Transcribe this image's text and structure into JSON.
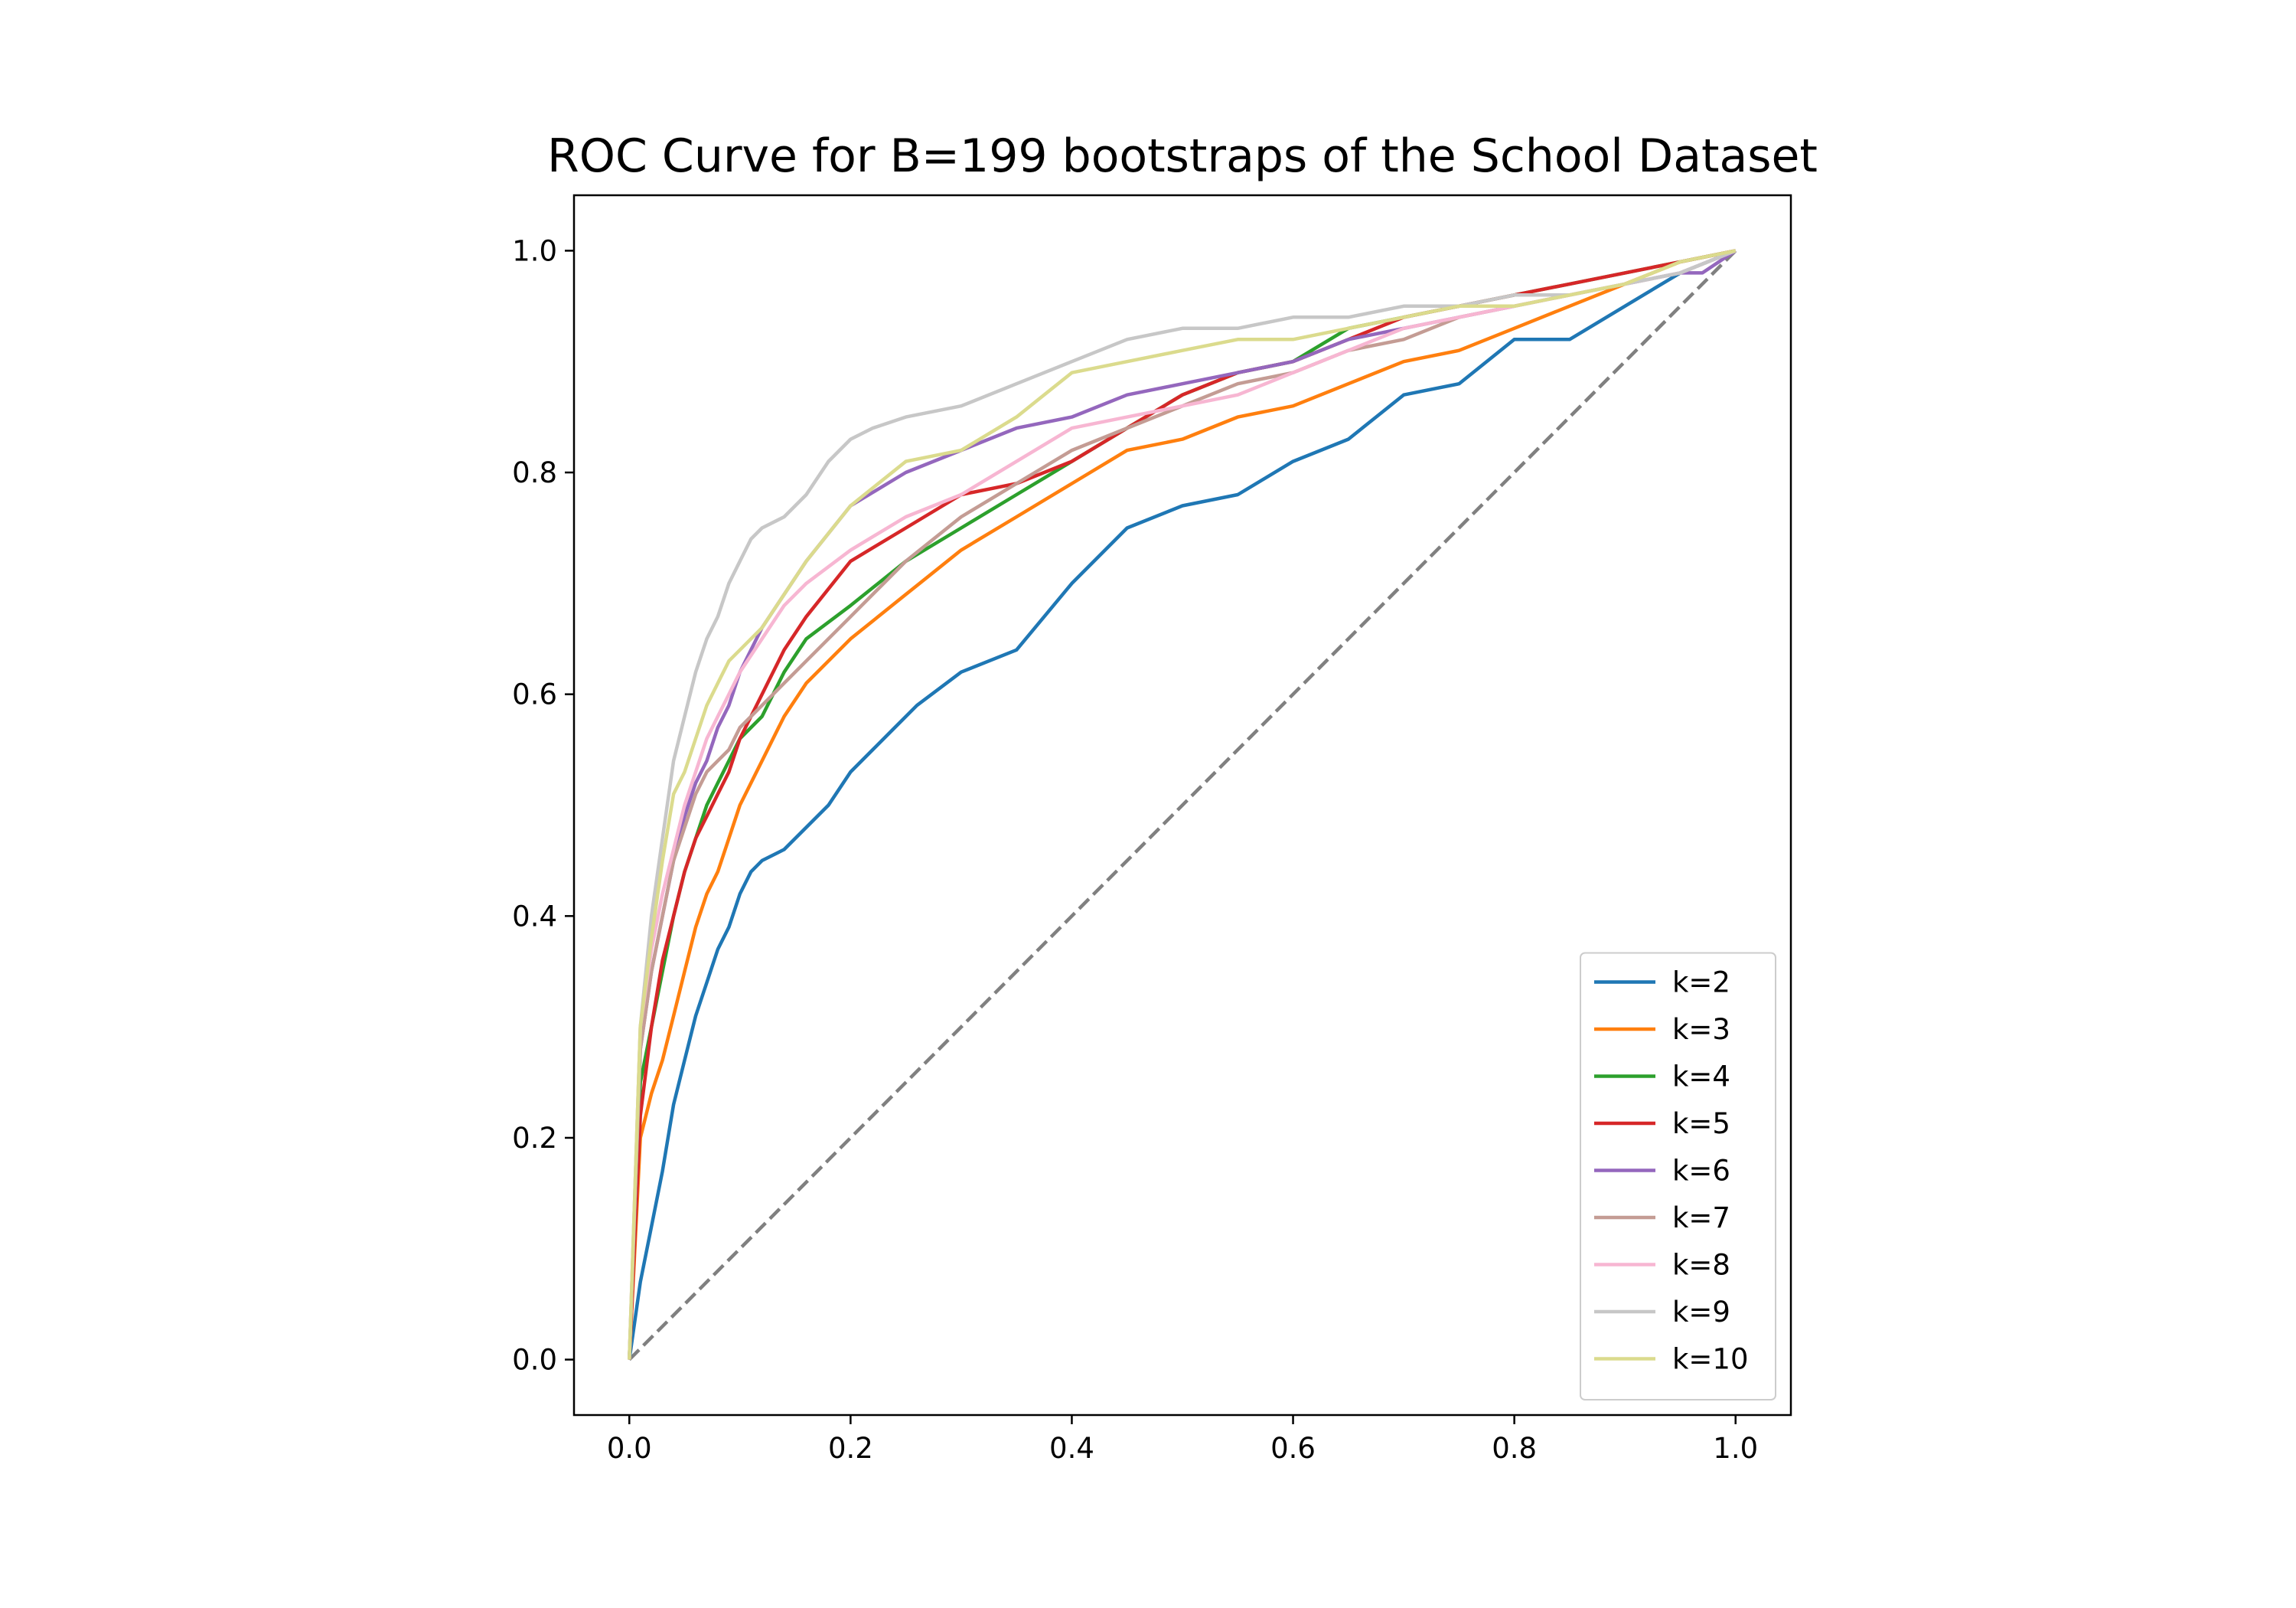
{
  "chart_data": {
    "type": "line",
    "title": "ROC Curve for B=199 bootstraps of the School Dataset",
    "xlabel": "",
    "ylabel": "",
    "xlim": [
      -0.05,
      1.05
    ],
    "ylim": [
      -0.05,
      1.05
    ],
    "xticks": [
      0.0,
      0.2,
      0.4,
      0.6,
      0.8,
      1.0
    ],
    "yticks": [
      0.0,
      0.2,
      0.4,
      0.6,
      0.8,
      1.0
    ],
    "xtick_labels": [
      "0.0",
      "0.2",
      "0.4",
      "0.6",
      "0.8",
      "1.0"
    ],
    "ytick_labels": [
      "0.0",
      "0.2",
      "0.4",
      "0.6",
      "0.8",
      "1.0"
    ],
    "grid": false,
    "legend_position": "lower-right",
    "reference_line": {
      "x": [
        0,
        1
      ],
      "y": [
        0,
        1
      ],
      "style": "dashed",
      "color": "#808080"
    },
    "series": [
      {
        "name": "k=2",
        "color": "#1f77b4",
        "x": [
          0,
          0.01,
          0.02,
          0.03,
          0.04,
          0.05,
          0.06,
          0.07,
          0.08,
          0.09,
          0.1,
          0.11,
          0.12,
          0.14,
          0.16,
          0.18,
          0.2,
          0.22,
          0.24,
          0.26,
          0.3,
          0.35,
          0.4,
          0.45,
          0.5,
          0.55,
          0.6,
          0.65,
          0.7,
          0.75,
          0.8,
          0.85,
          0.9,
          0.95,
          1.0
        ],
        "y": [
          0,
          0.07,
          0.12,
          0.17,
          0.23,
          0.27,
          0.31,
          0.34,
          0.37,
          0.39,
          0.42,
          0.44,
          0.45,
          0.46,
          0.48,
          0.5,
          0.53,
          0.55,
          0.57,
          0.59,
          0.62,
          0.64,
          0.7,
          0.75,
          0.77,
          0.78,
          0.81,
          0.83,
          0.87,
          0.88,
          0.92,
          0.92,
          0.95,
          0.98,
          1.0
        ]
      },
      {
        "name": "k=3",
        "color": "#ff7f0e",
        "x": [
          0,
          0.01,
          0.02,
          0.03,
          0.04,
          0.05,
          0.06,
          0.07,
          0.08,
          0.09,
          0.1,
          0.12,
          0.14,
          0.16,
          0.2,
          0.25,
          0.3,
          0.35,
          0.4,
          0.45,
          0.5,
          0.55,
          0.6,
          0.65,
          0.7,
          0.75,
          0.8,
          0.85,
          0.9,
          0.95,
          1.0
        ],
        "y": [
          0,
          0.2,
          0.24,
          0.27,
          0.31,
          0.35,
          0.39,
          0.42,
          0.44,
          0.47,
          0.5,
          0.54,
          0.58,
          0.61,
          0.65,
          0.69,
          0.73,
          0.76,
          0.79,
          0.82,
          0.83,
          0.85,
          0.86,
          0.88,
          0.9,
          0.91,
          0.93,
          0.95,
          0.97,
          0.99,
          1.0
        ]
      },
      {
        "name": "k=4",
        "color": "#2ca02c",
        "x": [
          0,
          0.01,
          0.02,
          0.03,
          0.04,
          0.05,
          0.06,
          0.07,
          0.08,
          0.09,
          0.1,
          0.12,
          0.14,
          0.16,
          0.2,
          0.25,
          0.3,
          0.35,
          0.4,
          0.45,
          0.5,
          0.55,
          0.6,
          0.65,
          0.7,
          0.75,
          0.8,
          0.85,
          0.9,
          0.95,
          1.0
        ],
        "y": [
          0,
          0.25,
          0.3,
          0.35,
          0.4,
          0.44,
          0.47,
          0.5,
          0.52,
          0.54,
          0.56,
          0.58,
          0.62,
          0.65,
          0.68,
          0.72,
          0.75,
          0.78,
          0.81,
          0.84,
          0.87,
          0.89,
          0.9,
          0.93,
          0.94,
          0.95,
          0.96,
          0.97,
          0.98,
          0.99,
          1.0
        ]
      },
      {
        "name": "k=5",
        "color": "#d62728",
        "x": [
          0,
          0.01,
          0.02,
          0.03,
          0.04,
          0.05,
          0.06,
          0.07,
          0.08,
          0.09,
          0.1,
          0.12,
          0.14,
          0.16,
          0.2,
          0.25,
          0.3,
          0.35,
          0.4,
          0.45,
          0.5,
          0.55,
          0.6,
          0.65,
          0.7,
          0.75,
          0.8,
          0.85,
          0.9,
          0.95,
          1.0
        ],
        "y": [
          0,
          0.22,
          0.3,
          0.36,
          0.4,
          0.44,
          0.47,
          0.49,
          0.51,
          0.53,
          0.56,
          0.6,
          0.64,
          0.67,
          0.72,
          0.75,
          0.78,
          0.79,
          0.81,
          0.84,
          0.87,
          0.89,
          0.9,
          0.92,
          0.94,
          0.95,
          0.96,
          0.97,
          0.98,
          0.99,
          1.0
        ]
      },
      {
        "name": "k=6",
        "color": "#9467bd",
        "x": [
          0,
          0.01,
          0.02,
          0.03,
          0.04,
          0.05,
          0.06,
          0.07,
          0.08,
          0.09,
          0.1,
          0.12,
          0.14,
          0.16,
          0.2,
          0.25,
          0.3,
          0.35,
          0.4,
          0.45,
          0.5,
          0.55,
          0.6,
          0.65,
          0.7,
          0.75,
          0.8,
          0.85,
          0.9,
          0.95,
          0.97,
          1.0
        ],
        "y": [
          0,
          0.28,
          0.35,
          0.4,
          0.45,
          0.49,
          0.52,
          0.54,
          0.57,
          0.59,
          0.62,
          0.66,
          0.69,
          0.72,
          0.77,
          0.8,
          0.82,
          0.84,
          0.85,
          0.87,
          0.88,
          0.89,
          0.9,
          0.92,
          0.93,
          0.94,
          0.95,
          0.96,
          0.97,
          0.98,
          0.98,
          1.0
        ]
      },
      {
        "name": "k=7",
        "color": "#c49c94",
        "x": [
          0,
          0.01,
          0.02,
          0.03,
          0.04,
          0.05,
          0.06,
          0.07,
          0.08,
          0.09,
          0.1,
          0.12,
          0.14,
          0.16,
          0.2,
          0.25,
          0.3,
          0.35,
          0.4,
          0.45,
          0.5,
          0.55,
          0.6,
          0.65,
          0.7,
          0.75,
          0.8,
          0.85,
          0.9,
          0.95,
          1.0
        ],
        "y": [
          0,
          0.28,
          0.35,
          0.4,
          0.45,
          0.48,
          0.51,
          0.53,
          0.54,
          0.55,
          0.57,
          0.59,
          0.61,
          0.63,
          0.67,
          0.72,
          0.76,
          0.79,
          0.82,
          0.84,
          0.86,
          0.88,
          0.89,
          0.91,
          0.92,
          0.94,
          0.95,
          0.96,
          0.97,
          0.98,
          1.0
        ]
      },
      {
        "name": "k=8",
        "color": "#f7b6d2",
        "x": [
          0,
          0.01,
          0.02,
          0.03,
          0.04,
          0.05,
          0.06,
          0.07,
          0.08,
          0.09,
          0.1,
          0.12,
          0.14,
          0.16,
          0.2,
          0.25,
          0.3,
          0.35,
          0.4,
          0.45,
          0.5,
          0.55,
          0.6,
          0.65,
          0.7,
          0.75,
          0.8,
          0.85,
          0.9,
          0.95,
          1.0
        ],
        "y": [
          0,
          0.3,
          0.37,
          0.42,
          0.46,
          0.5,
          0.53,
          0.56,
          0.58,
          0.6,
          0.62,
          0.65,
          0.68,
          0.7,
          0.73,
          0.76,
          0.78,
          0.81,
          0.84,
          0.85,
          0.86,
          0.87,
          0.89,
          0.91,
          0.93,
          0.94,
          0.95,
          0.96,
          0.97,
          0.98,
          1.0
        ]
      },
      {
        "name": "k=9",
        "color": "#c7c7c7",
        "x": [
          0,
          0.01,
          0.02,
          0.03,
          0.04,
          0.05,
          0.06,
          0.07,
          0.08,
          0.09,
          0.1,
          0.11,
          0.12,
          0.14,
          0.16,
          0.18,
          0.2,
          0.22,
          0.25,
          0.3,
          0.35,
          0.4,
          0.45,
          0.5,
          0.55,
          0.6,
          0.65,
          0.7,
          0.75,
          0.8,
          0.85,
          0.9,
          0.95,
          1.0
        ],
        "y": [
          0,
          0.3,
          0.4,
          0.47,
          0.54,
          0.58,
          0.62,
          0.65,
          0.67,
          0.7,
          0.72,
          0.74,
          0.75,
          0.76,
          0.78,
          0.81,
          0.83,
          0.84,
          0.85,
          0.86,
          0.88,
          0.9,
          0.92,
          0.93,
          0.93,
          0.94,
          0.94,
          0.95,
          0.95,
          0.96,
          0.96,
          0.97,
          0.98,
          1.0
        ]
      },
      {
        "name": "k=10",
        "color": "#dbdb8d",
        "x": [
          0,
          0.01,
          0.02,
          0.03,
          0.04,
          0.05,
          0.06,
          0.07,
          0.08,
          0.09,
          0.1,
          0.12,
          0.14,
          0.16,
          0.2,
          0.25,
          0.3,
          0.35,
          0.4,
          0.45,
          0.5,
          0.55,
          0.6,
          0.65,
          0.7,
          0.75,
          0.8,
          0.85,
          0.9,
          0.95,
          1.0
        ],
        "y": [
          0,
          0.3,
          0.38,
          0.45,
          0.51,
          0.53,
          0.56,
          0.59,
          0.61,
          0.63,
          0.64,
          0.66,
          0.69,
          0.72,
          0.77,
          0.81,
          0.82,
          0.85,
          0.89,
          0.9,
          0.91,
          0.92,
          0.92,
          0.93,
          0.94,
          0.95,
          0.95,
          0.96,
          0.97,
          0.99,
          1.0
        ]
      }
    ]
  }
}
